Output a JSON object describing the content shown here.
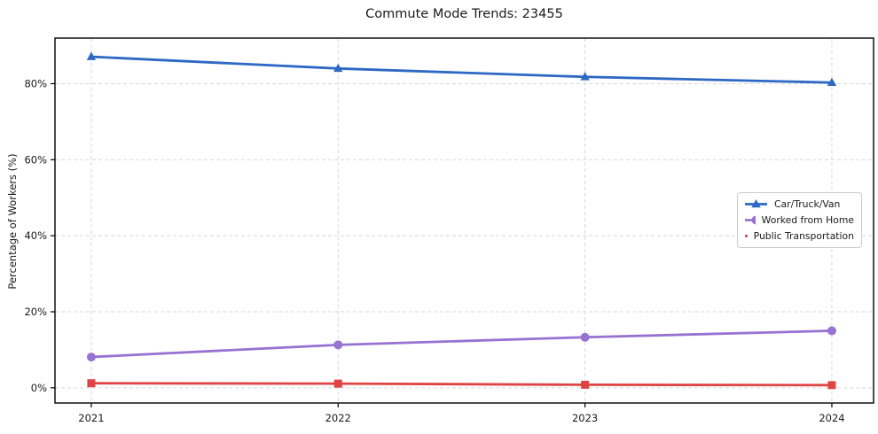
{
  "chart_data": {
    "type": "line",
    "title": "Commute Mode Trends: 23455",
    "xlabel": "",
    "ylabel": "Percentage of Workers (%)",
    "x": [
      2021,
      2022,
      2023,
      2024
    ],
    "xtick_labels": [
      "2021",
      "2022",
      "2023",
      "2024"
    ],
    "yticks": [
      0,
      20,
      40,
      60,
      80
    ],
    "ytick_labels": [
      "0%",
      "20%",
      "40%",
      "60%",
      "80%"
    ],
    "xlim": [
      2020.853,
      2024.169
    ],
    "ylim": [
      -4.0,
      92.0
    ],
    "grid": true,
    "grid_style": "dashed",
    "legend_position": "center right",
    "series": [
      {
        "name": "Car/Truck/Van",
        "color": "#2d68c4",
        "marker": "triangle",
        "values": [
          87.1,
          84.0,
          81.8,
          80.3
        ]
      },
      {
        "name": "Worked from Home",
        "color": "#9872d2",
        "marker": "circle",
        "values": [
          8.1,
          11.3,
          13.3,
          15.0
        ]
      },
      {
        "name": "Public Transportation",
        "color": "#e04343",
        "marker": "square",
        "values": [
          1.2,
          1.1,
          0.8,
          0.7
        ]
      }
    ],
    "colors": {
      "grid": "#d7d7d7",
      "spine": "#000000",
      "tick_label": "#1a1a1a",
      "background": "#ffffff"
    }
  }
}
